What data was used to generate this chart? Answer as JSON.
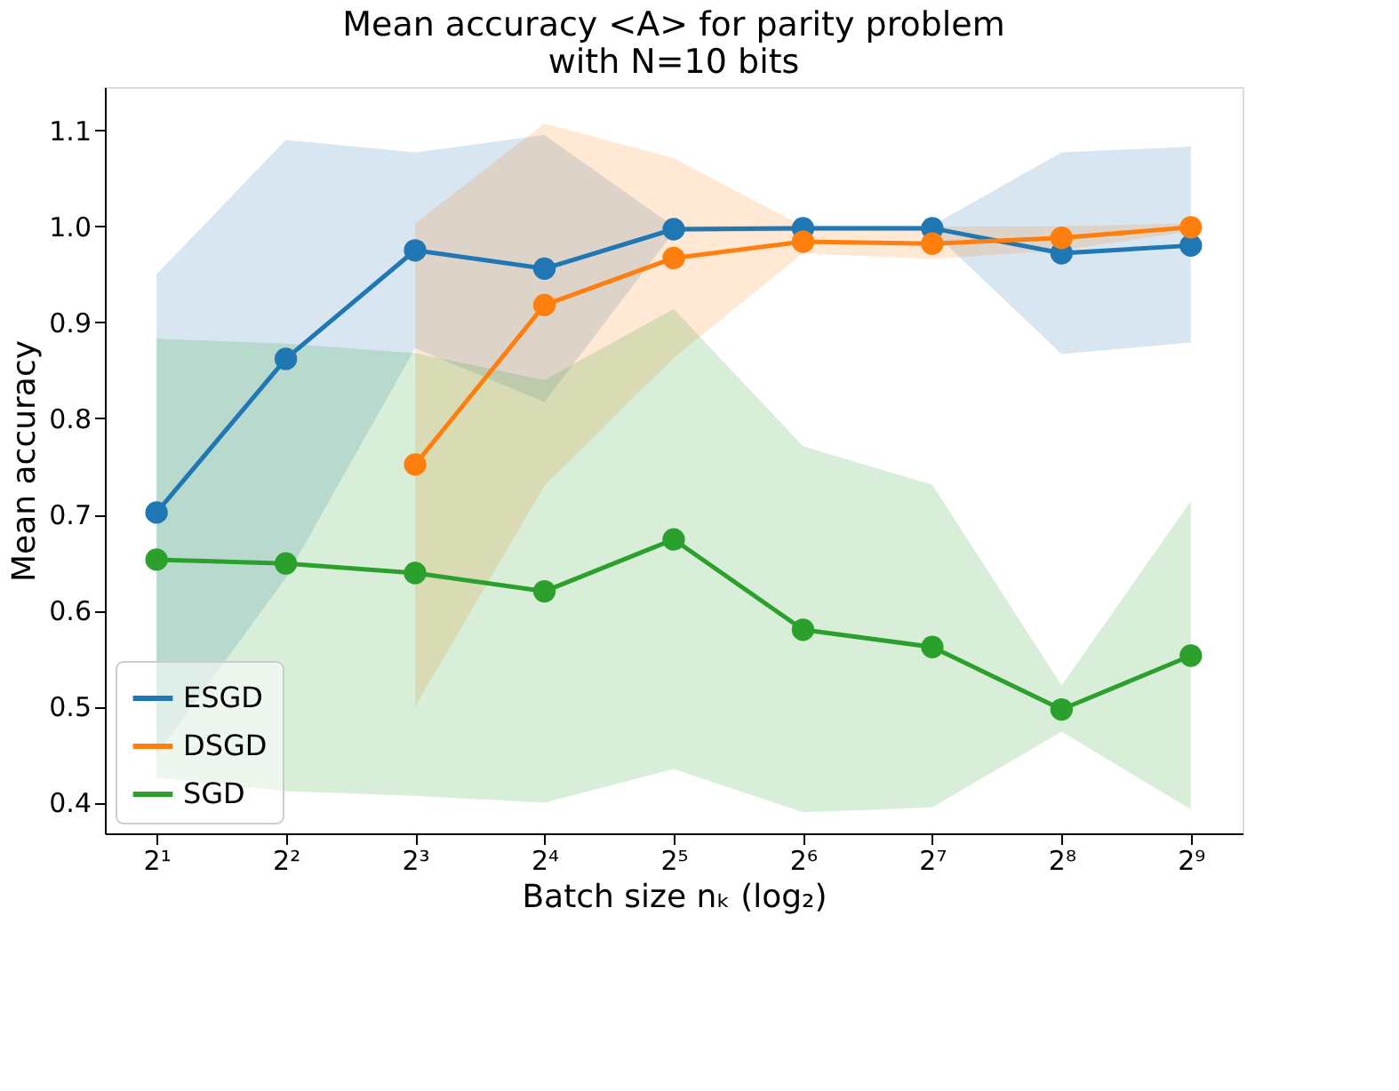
{
  "chart_data": {
    "type": "line",
    "title": "Mean accuracy <A> for parity problem\nwith N=10 bits",
    "xlabel": "Batch size nₖ (log₂)",
    "ylabel": "Mean accuracy",
    "x": [
      2,
      4,
      8,
      16,
      32,
      64,
      128,
      256,
      512
    ],
    "series": [
      {
        "name": "ESGD",
        "color": "#1f77b4",
        "values": [
          0.702,
          0.862,
          0.975,
          0.956,
          0.997,
          0.998,
          0.998,
          0.972,
          0.98
        ],
        "lower": [
          0.45,
          0.634,
          0.873,
          0.817,
          0.994,
          0.995,
          0.995,
          0.867,
          0.879
        ],
        "upper": [
          0.95,
          1.09,
          1.077,
          1.095,
          1.0,
          1.001,
          1.001,
          1.077,
          1.083
        ]
      },
      {
        "name": "DSGD",
        "color": "#ff7f0e",
        "values": [
          null,
          null,
          0.752,
          0.918,
          0.967,
          0.984,
          0.982,
          0.988,
          0.999
        ],
        "lower": [
          null,
          null,
          0.5,
          0.73,
          0.863,
          0.972,
          0.966,
          0.975,
          0.995
        ],
        "upper": [
          null,
          null,
          1.003,
          1.107,
          1.071,
          1.0,
          1.0,
          1.0,
          1.003
        ]
      },
      {
        "name": "SGD",
        "color": "#2ca02c",
        "values": [
          0.653,
          0.649,
          0.639,
          0.62,
          0.674,
          0.58,
          0.562,
          0.497,
          0.553
        ],
        "lower": [
          0.426,
          0.412,
          0.407,
          0.4,
          0.435,
          0.39,
          0.395,
          0.474,
          0.393
        ],
        "upper": [
          0.883,
          0.878,
          0.868,
          0.84,
          0.914,
          0.771,
          0.731,
          0.522,
          0.714
        ]
      }
    ],
    "log": "x",
    "xlim": [
      1.516,
      675.6
    ],
    "xticks": [
      {
        "value": 2,
        "label": "2¹"
      },
      {
        "value": 4,
        "label": "2²"
      },
      {
        "value": 8,
        "label": "2³"
      },
      {
        "value": 16,
        "label": "2⁴"
      },
      {
        "value": 32,
        "label": "2⁵"
      },
      {
        "value": 64,
        "label": "2⁶"
      },
      {
        "value": 128,
        "label": "2⁷"
      },
      {
        "value": 256,
        "label": "2⁸"
      },
      {
        "value": 512,
        "label": "2⁹"
      }
    ],
    "ylim": [
      0.368,
      1.145
    ],
    "yticks": [
      0.4,
      0.5,
      0.6,
      0.7,
      0.8,
      0.9,
      {
        "value": 1,
        "label": "1.0"
      },
      1.1
    ],
    "legend": "bottom left",
    "grid": false,
    "marker": "circle",
    "line_style": "solid"
  }
}
